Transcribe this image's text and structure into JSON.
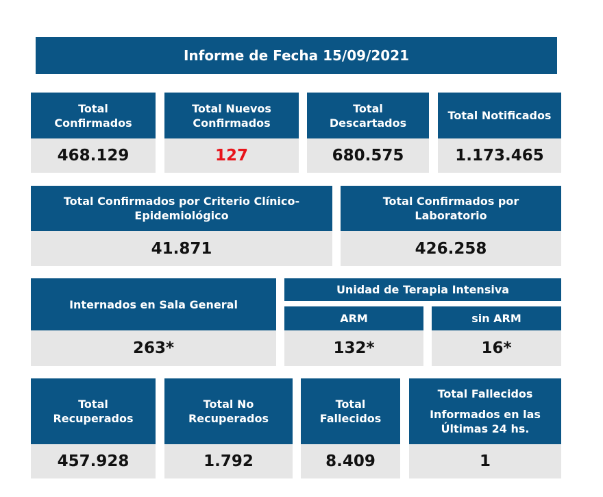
{
  "report_title": "Informe de Fecha 15/09/2021",
  "row1": [
    {
      "label": "Total Confirmados",
      "value": "468.129"
    },
    {
      "label": "Total Nuevos Confirmados",
      "value": "127"
    },
    {
      "label": "Total Descartados",
      "value": "680.575"
    },
    {
      "label": "Total Notificados",
      "value": "1.173.465"
    }
  ],
  "row2": [
    {
      "label": "Total Confirmados por Criterio Clínico-Epidemiológico",
      "value": "41.871"
    },
    {
      "label": "Total Confirmados por Laboratorio",
      "value": "426.258"
    }
  ],
  "row3": {
    "sala_general": {
      "label": "Internados en Sala General",
      "value": "263*"
    },
    "uti_title": "Unidad de Terapia Intensiva",
    "arm": {
      "label": "ARM",
      "value": "132*"
    },
    "sin_arm": {
      "label": "sin ARM",
      "value": "16*"
    }
  },
  "row4": [
    {
      "label": "Total Recuperados",
      "value": "457.928"
    },
    {
      "label": "Total No Recuperados",
      "value": "1.792"
    },
    {
      "label": "Total Fallecidos",
      "value": "8.409"
    },
    {
      "label": "Total Fallecidos",
      "sublabel": "Informados en las Últimas 24 hs.",
      "value": "1"
    }
  ],
  "colors": {
    "header_bg": "#0b5585",
    "value_bg": "#e6e6e6",
    "highlight": "#e8141a"
  }
}
